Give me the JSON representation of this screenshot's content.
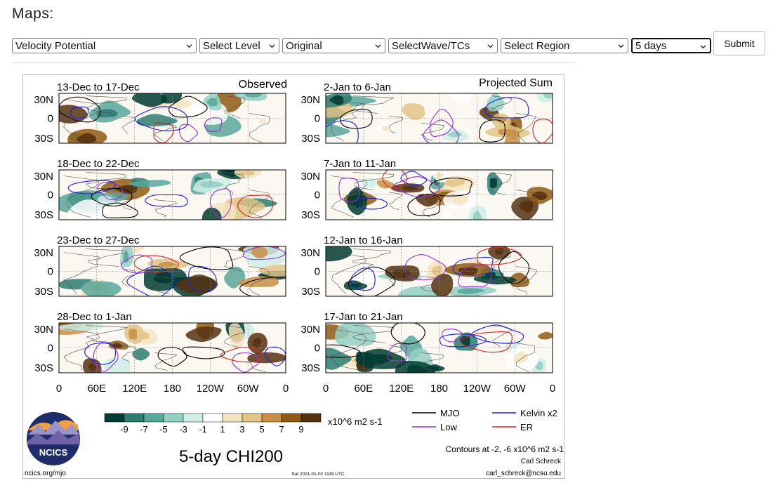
{
  "header": {
    "title": "Maps:"
  },
  "controls": {
    "variable": "Velocity Potential",
    "level": "Select Level",
    "version": "Original",
    "wave": "SelectWave/TCs",
    "region": "Select Region",
    "period": "5 days",
    "submit_label": "Submit"
  },
  "figure": {
    "column_titles": {
      "left": "Observed",
      "right": "Projected Sum"
    },
    "panels_left": [
      "13-Dec to 17-Dec",
      "18-Dec to 22-Dec",
      "23-Dec to 27-Dec",
      "28-Dec to 1-Jan"
    ],
    "panels_right": [
      "2-Jan to 6-Jan",
      "7-Jan to 11-Jan",
      "12-Jan to 16-Jan",
      "17-Jan to 21-Jan"
    ],
    "lat_labels": [
      "30N",
      "0",
      "30S"
    ],
    "lon_labels": [
      "0",
      "60E",
      "120E",
      "180",
      "120W",
      "60W",
      "0"
    ],
    "colorbar": {
      "labels": [
        "-9",
        "-7",
        "-5",
        "-3",
        "-1",
        "1",
        "3",
        "5",
        "7",
        "9"
      ],
      "colors": [
        "#013c32",
        "#2b7d72",
        "#58a79b",
        "#93cfc3",
        "#cfeee8",
        "#ffffff",
        "#f4e4c1",
        "#e2c486",
        "#c89046",
        "#8f5a12",
        "#553110"
      ],
      "unit": "x10^6 m2 s-1"
    },
    "legend": {
      "mjo": "MJO",
      "kelvin": "Kelvin x2",
      "low": "Low",
      "er": "ER"
    },
    "legend_colors": {
      "mjo": "#000000",
      "kelvin": "#1c1ce0",
      "low": "#9a2fd6",
      "er": "#dd2222"
    },
    "main_title": "5-day CHI200",
    "contours_note": "Contours at -2, -6 x10^6 m2 s-1",
    "author": "Carl Schreck",
    "email": "carl_schreck@ncsu.edu",
    "site": "ncics.org/mjo",
    "timestamp": "Sat 2021-01-02 1115 UTC",
    "logo_text": "NCICS"
  }
}
